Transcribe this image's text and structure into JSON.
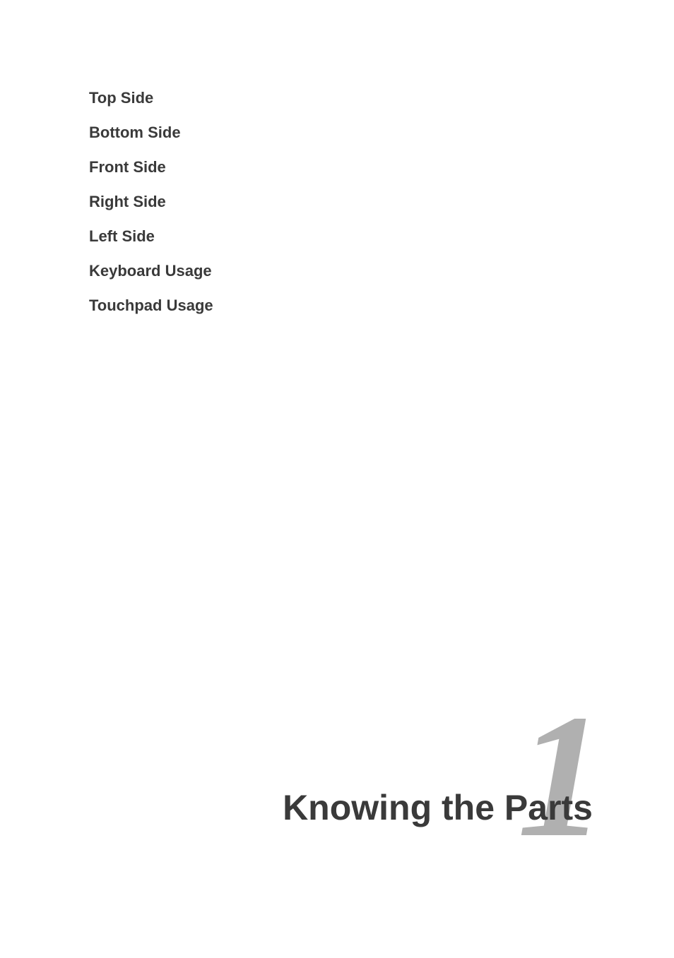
{
  "contents": {
    "items": [
      "Top Side",
      "Bottom Side",
      "Front Side",
      "Right Side",
      "Left Side",
      "Keyboard Usage",
      "Touchpad Usage"
    ]
  },
  "chapter": {
    "number": "1",
    "title": "Knowing the Parts"
  },
  "styling": {
    "background_color": "#ffffff",
    "list_font_size": 22,
    "list_font_weight": 700,
    "list_color": "#3a3a3a",
    "chapter_number_color": "#b0b0b0",
    "chapter_number_fontsize": 250,
    "chapter_title_fontsize": 50,
    "chapter_title_color": "#3a3a3a"
  }
}
